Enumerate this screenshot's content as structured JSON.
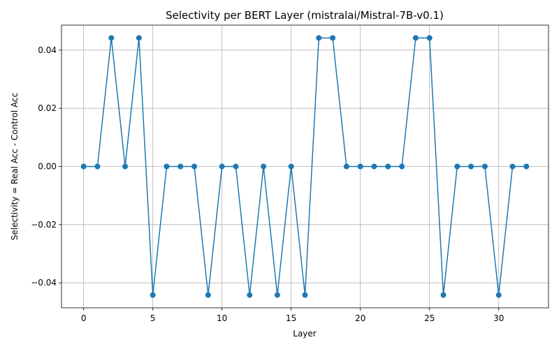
{
  "chart_data": {
    "type": "line",
    "title": "Selectivity per BERT Layer (mistralai/Mistral-7B-v0.1)",
    "xlabel": "Layer",
    "ylabel": "Selectivity = Real Acc - Control Acc",
    "xlim": [
      -1.6,
      33.6
    ],
    "ylim": [
      -0.0486,
      0.0486
    ],
    "xticks": [
      0,
      5,
      10,
      15,
      20,
      25,
      30
    ],
    "yticks": [
      -0.04,
      -0.02,
      0.0,
      0.02,
      0.04
    ],
    "ytick_labels": [
      "−0.04",
      "−0.02",
      "0.00",
      "0.02",
      "0.04"
    ],
    "grid": true,
    "color": "#1f77b4",
    "x": [
      0,
      1,
      2,
      3,
      4,
      5,
      6,
      7,
      8,
      9,
      10,
      11,
      12,
      13,
      14,
      15,
      16,
      17,
      18,
      19,
      20,
      21,
      22,
      23,
      24,
      25,
      26,
      27,
      28,
      29,
      30,
      31,
      32
    ],
    "y": [
      0,
      0,
      0.0442,
      0,
      0.0442,
      -0.0442,
      0,
      0,
      0,
      -0.0442,
      0,
      0,
      -0.0442,
      0,
      -0.0442,
      0,
      -0.0442,
      0.0442,
      0.0442,
      0,
      0,
      0,
      0,
      0,
      0.0442,
      0.0442,
      -0.0442,
      0,
      0,
      0,
      -0.0442,
      0,
      0
    ]
  }
}
